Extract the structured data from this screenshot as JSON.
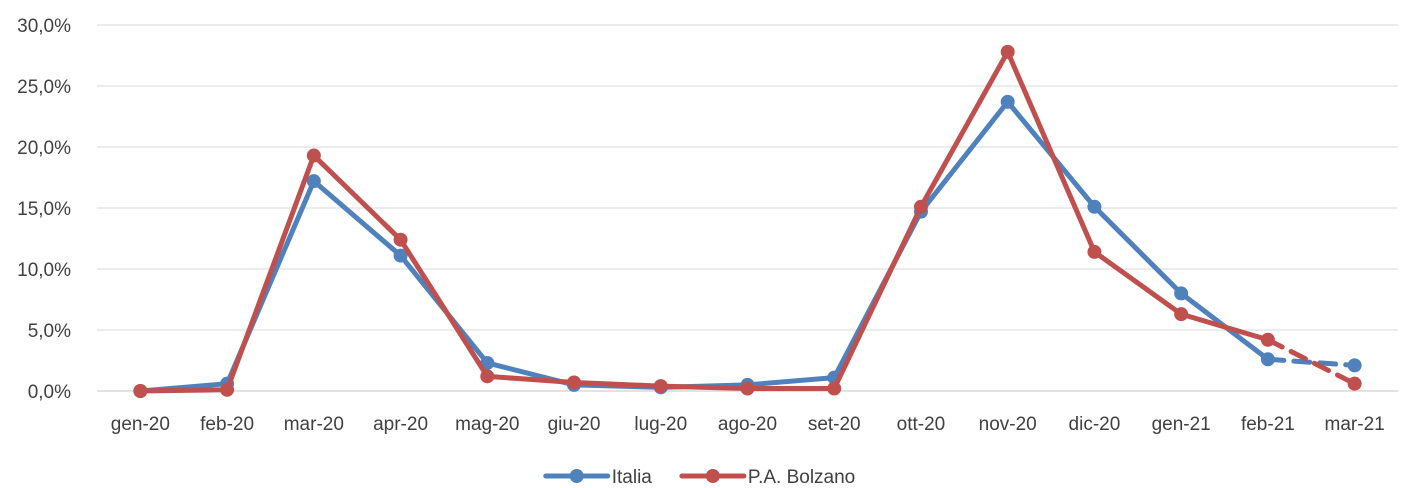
{
  "chart_data": {
    "type": "line",
    "title": "",
    "xlabel": "",
    "ylabel": "",
    "categories": [
      "gen-20",
      "feb-20",
      "mar-20",
      "apr-20",
      "mag-20",
      "giu-20",
      "lug-20",
      "ago-20",
      "set-20",
      "ott-20",
      "nov-20",
      "dic-20",
      "gen-21",
      "feb-21",
      "mar-21"
    ],
    "ylim": [
      0,
      30
    ],
    "yticks": [
      0,
      5,
      10,
      15,
      20,
      25,
      30
    ],
    "ytick_labels": [
      "0,0%",
      "5,0%",
      "10,0%",
      "15,0%",
      "20,0%",
      "25,0%",
      "30,0%"
    ],
    "grid": true,
    "legend": "bottom",
    "last_segment_style": "dashed",
    "series": [
      {
        "name": "Italia",
        "color": "#4F81BD",
        "values": [
          0.0,
          0.6,
          17.2,
          11.1,
          2.3,
          0.5,
          0.3,
          0.5,
          1.1,
          14.7,
          23.7,
          15.1,
          8.0,
          2.6,
          2.1
        ]
      },
      {
        "name": "P.A. Bolzano",
        "color": "#C0504D",
        "values": [
          0.0,
          0.1,
          19.3,
          12.4,
          1.2,
          0.7,
          0.4,
          0.2,
          0.2,
          15.1,
          27.8,
          11.4,
          6.3,
          4.2,
          0.6
        ]
      }
    ]
  }
}
